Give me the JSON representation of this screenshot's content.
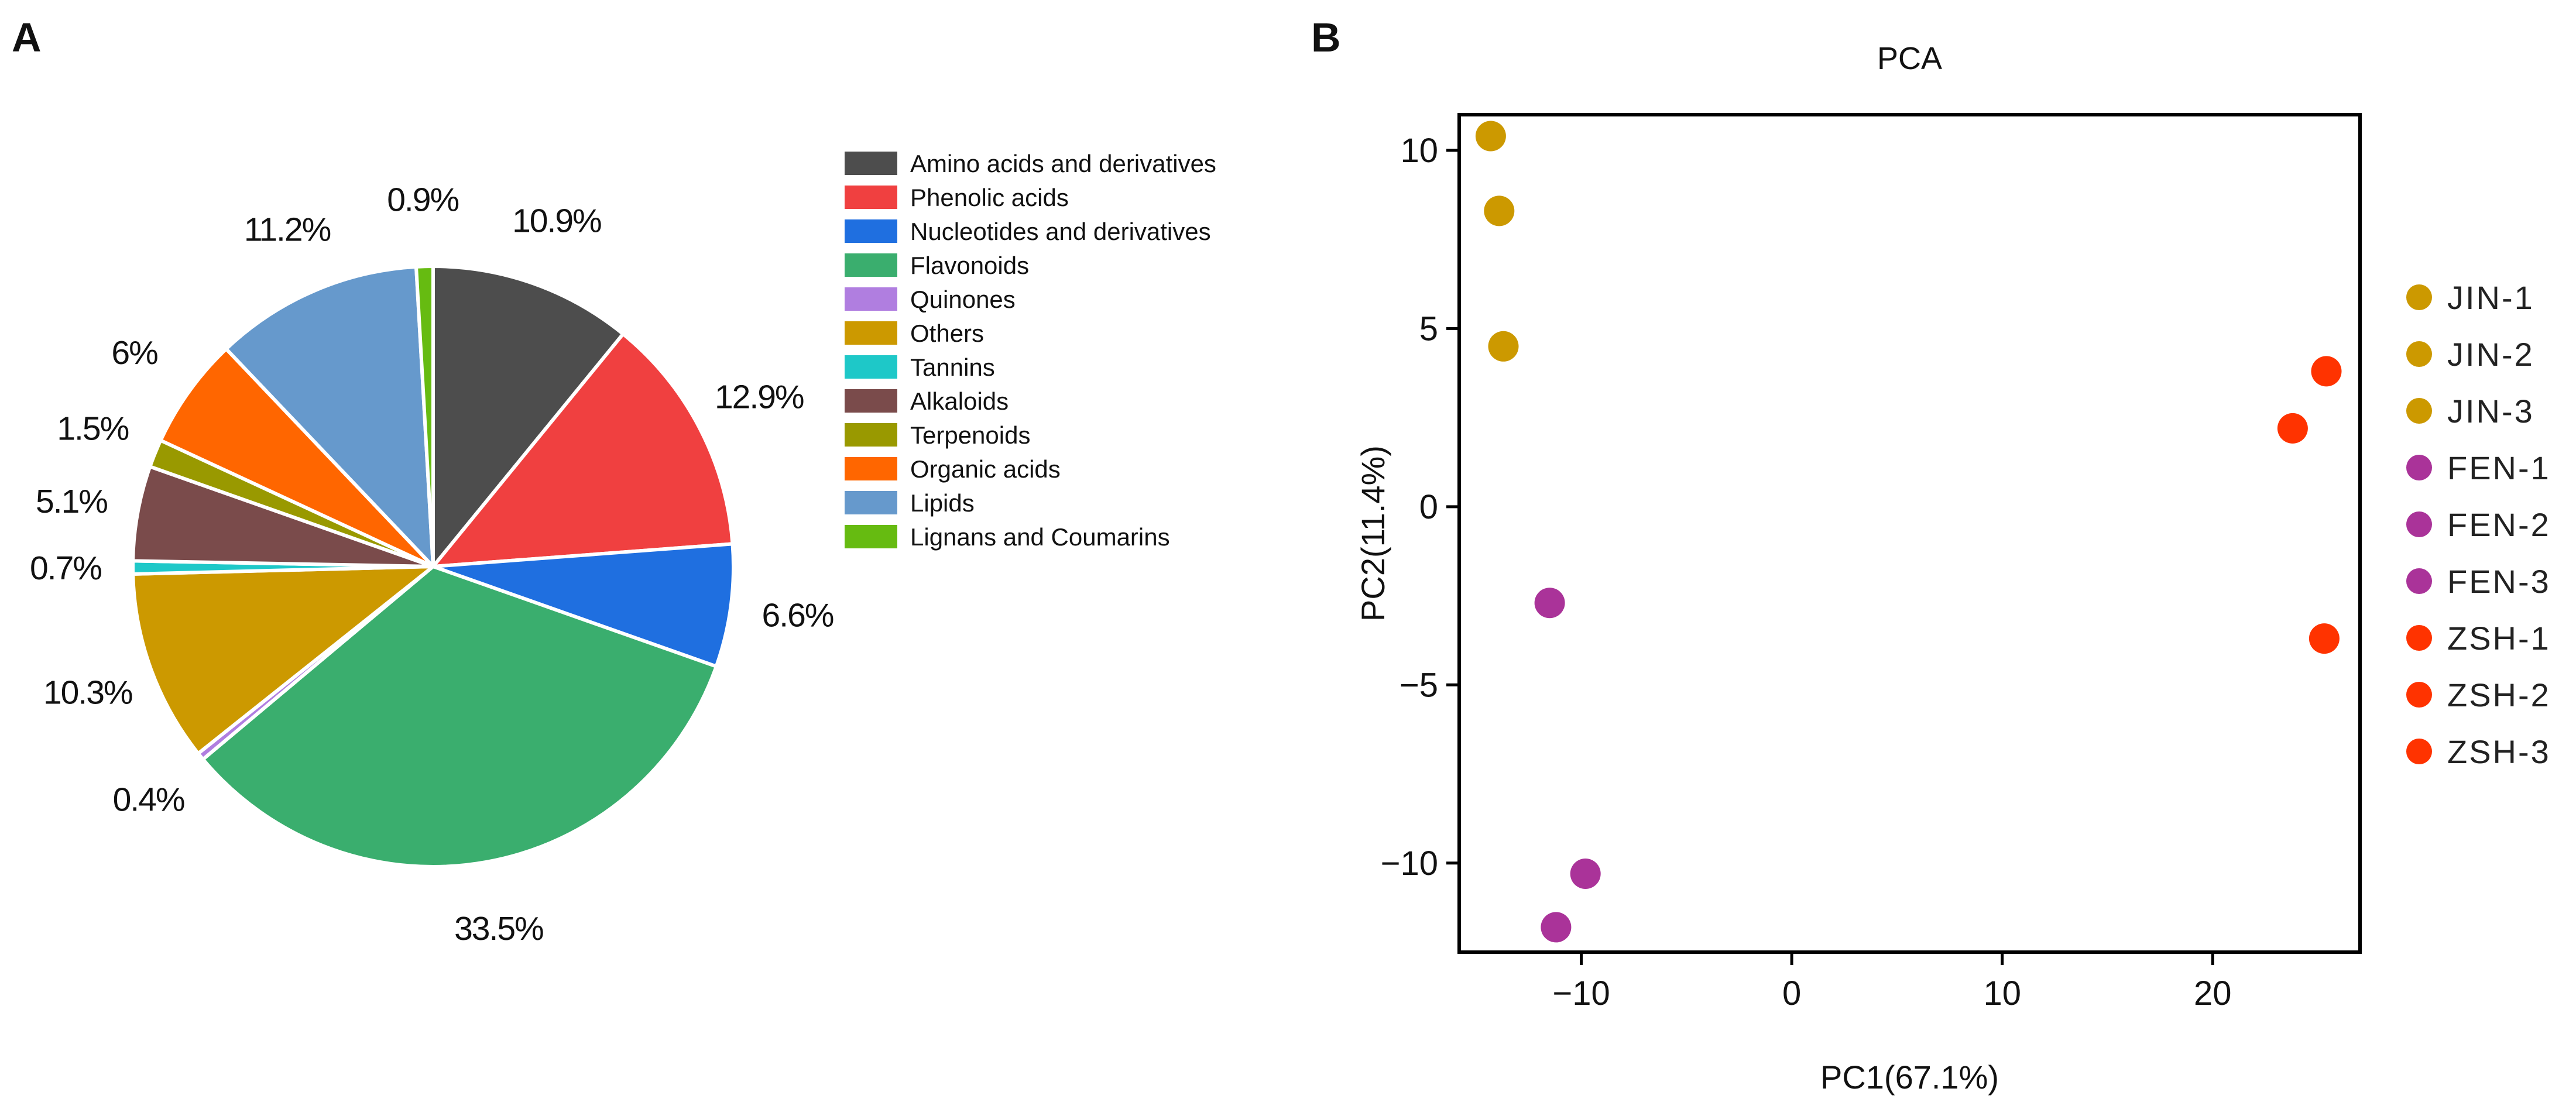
{
  "chart_data": [
    {
      "panel": "A",
      "type": "pie",
      "series": [
        {
          "name": "Amino acids and derivatives",
          "value": 10.9,
          "label": "10.9%",
          "color": "#4d4d4d"
        },
        {
          "name": "Phenolic acids",
          "value": 12.9,
          "label": "12.9%",
          "color": "#f04040"
        },
        {
          "name": "Nucleotides and derivatives",
          "value": 6.6,
          "label": "6.6%",
          "color": "#1f6fe0"
        },
        {
          "name": "Flavonoids",
          "value": 33.5,
          "label": "33.5%",
          "color": "#3aae6e"
        },
        {
          "name": "Quinones",
          "value": 0.4,
          "label": "0.4%",
          "color": "#b07ee0"
        },
        {
          "name": "Others",
          "value": 10.3,
          "label": "10.3%",
          "color": "#cc9900"
        },
        {
          "name": "Tannins",
          "value": 0.7,
          "label": "0.7%",
          "color": "#1ec8c8"
        },
        {
          "name": "Alkaloids",
          "value": 5.1,
          "label": "5.1%",
          "color": "#7a4b4b"
        },
        {
          "name": "Terpenoids",
          "value": 1.5,
          "label": "1.5%",
          "color": "#999900"
        },
        {
          "name": "Organic acids",
          "value": 6,
          "label": "6%",
          "color": "#ff6600"
        },
        {
          "name": "Lipids",
          "value": 11.2,
          "label": "11.2%",
          "color": "#6699cc"
        },
        {
          "name": "Lignans and Coumarins",
          "value": 0.9,
          "label": "0.9%",
          "color": "#66bb11"
        }
      ],
      "legend_position": "right"
    },
    {
      "panel": "B",
      "type": "scatter",
      "title": "PCA",
      "xlabel": "PC1(67.1%)",
      "ylabel": "PC2(11.4%)",
      "xlim": [
        -15.8,
        27
      ],
      "ylim": [
        -12.5,
        11
      ],
      "xticks": [
        -10,
        0,
        10,
        20
      ],
      "xtick_labels": [
        "−10",
        "0",
        "10",
        "20"
      ],
      "yticks": [
        10,
        5,
        0,
        -5,
        -10
      ],
      "ytick_labels": [
        "10",
        "5",
        "0",
        "−5",
        "−10"
      ],
      "points": [
        {
          "name": "JIN-1",
          "x": -14.3,
          "y": 10.4,
          "group": "JIN"
        },
        {
          "name": "JIN-2",
          "x": -13.9,
          "y": 8.3,
          "group": "JIN"
        },
        {
          "name": "JIN-3",
          "x": -13.7,
          "y": 4.5,
          "group": "JIN"
        },
        {
          "name": "FEN-1",
          "x": -11.5,
          "y": -2.7,
          "group": "FEN"
        },
        {
          "name": "FEN-2",
          "x": -9.8,
          "y": -10.3,
          "group": "FEN"
        },
        {
          "name": "FEN-3",
          "x": -11.2,
          "y": -11.8,
          "group": "FEN"
        },
        {
          "name": "ZSH-1",
          "x": 25.4,
          "y": 3.8,
          "group": "ZSH"
        },
        {
          "name": "ZSH-2",
          "x": 23.8,
          "y": 2.2,
          "group": "ZSH"
        },
        {
          "name": "ZSH-3",
          "x": 25.3,
          "y": -3.7,
          "group": "ZSH"
        }
      ],
      "legend": [
        "JIN-1",
        "JIN-2",
        "JIN-3",
        "FEN-1",
        "FEN-2",
        "FEN-3",
        "ZSH-1",
        "ZSH-2",
        "ZSH-3"
      ],
      "group_colors": {
        "JIN": "#cc9900",
        "FEN": "#aa3399",
        "ZSH": "#ff3300"
      },
      "legend_position": "right"
    }
  ],
  "panels": {
    "a": "A",
    "b": "B"
  }
}
